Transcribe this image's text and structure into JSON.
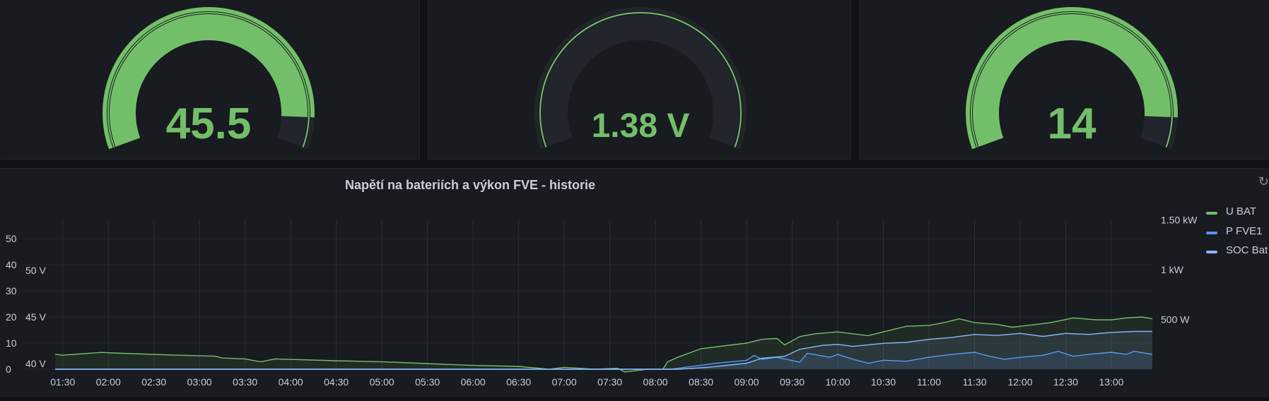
{
  "gauges": [
    {
      "value_text": "45.5",
      "fill_fraction": 0.92,
      "color": "#73bf69",
      "track": "#22252b"
    },
    {
      "value_text": "1.38 V",
      "fill_fraction": 0.0,
      "color": "#73bf69",
      "track": "#22252b"
    },
    {
      "value_text": "14",
      "fill_fraction": 0.92,
      "color": "#73bf69",
      "track": "#22252b"
    }
  ],
  "history": {
    "title": "Napětí na bateriích a výkon FVE - historie",
    "refresh_icon": "↻"
  },
  "legend": [
    {
      "label": "U BAT",
      "color": "#73bf69"
    },
    {
      "label": "P FVE1",
      "color": "#5794f2"
    },
    {
      "label": "SOC Bat",
      "color": "#8ab8ff"
    }
  ],
  "chart_data": {
    "type": "line",
    "title": "Napětí na bateriích a výkon FVE - historie",
    "x_ticks": [
      "01:30",
      "02:00",
      "02:30",
      "03:00",
      "03:30",
      "04:00",
      "04:30",
      "05:00",
      "05:30",
      "06:00",
      "06:30",
      "07:00",
      "07:30",
      "08:00",
      "08:30",
      "09:00",
      "09:30",
      "10:00",
      "10:30",
      "11:00",
      "11:30",
      "12:00",
      "12:30",
      "13:00"
    ],
    "x_range": [
      "01:25",
      "13:27"
    ],
    "y_axes": {
      "left_outer": {
        "ticks": [
          "0",
          "10",
          "20",
          "30",
          "40",
          "50"
        ],
        "range": [
          0,
          50
        ]
      },
      "left_inner": {
        "ticks": [
          "40 V",
          "45 V",
          "50 V"
        ],
        "unit": "V"
      },
      "right": {
        "ticks": [
          "500 W",
          "1 kW",
          "1.50 kW"
        ],
        "unit": "W"
      }
    },
    "grid": true,
    "legend_position": "right",
    "series": [
      {
        "name": "U BAT",
        "axis": "left_inner",
        "unit": "V",
        "color": "#73bf69",
        "points": [
          [
            "01:25",
            41.0
          ],
          [
            "01:30",
            40.9
          ],
          [
            "01:55",
            41.2
          ],
          [
            "02:10",
            41.1
          ],
          [
            "02:45",
            40.9
          ],
          [
            "03:10",
            40.8
          ],
          [
            "03:15",
            40.6
          ],
          [
            "03:30",
            40.5
          ],
          [
            "03:40",
            40.2
          ],
          [
            "03:50",
            40.5
          ],
          [
            "04:30",
            40.3
          ],
          [
            "05:00",
            40.2
          ],
          [
            "05:30",
            40.0
          ],
          [
            "06:00",
            39.8
          ],
          [
            "06:30",
            39.7
          ],
          [
            "06:50",
            39.4
          ],
          [
            "07:00",
            39.6
          ],
          [
            "07:20",
            39.4
          ],
          [
            "07:35",
            39.5
          ],
          [
            "07:40",
            39.1
          ],
          [
            "07:55",
            39.4
          ],
          [
            "08:05",
            39.4
          ],
          [
            "08:08",
            40.2
          ],
          [
            "08:15",
            40.7
          ],
          [
            "08:30",
            41.6
          ],
          [
            "08:45",
            41.9
          ],
          [
            "09:00",
            42.2
          ],
          [
            "09:10",
            42.6
          ],
          [
            "09:20",
            42.7
          ],
          [
            "09:25",
            42.0
          ],
          [
            "09:35",
            42.9
          ],
          [
            "09:45",
            43.2
          ],
          [
            "10:00",
            43.4
          ],
          [
            "10:10",
            43.2
          ],
          [
            "10:20",
            43.0
          ],
          [
            "10:30",
            43.4
          ],
          [
            "10:45",
            44.0
          ],
          [
            "11:00",
            44.1
          ],
          [
            "11:10",
            44.4
          ],
          [
            "11:20",
            44.8
          ],
          [
            "11:30",
            44.4
          ],
          [
            "11:45",
            44.2
          ],
          [
            "11:55",
            43.9
          ],
          [
            "12:05",
            44.1
          ],
          [
            "12:20",
            44.4
          ],
          [
            "12:35",
            44.9
          ],
          [
            "12:50",
            44.7
          ],
          [
            "13:00",
            44.7
          ],
          [
            "13:10",
            44.9
          ],
          [
            "13:20",
            45.0
          ],
          [
            "13:27",
            44.8
          ]
        ]
      },
      {
        "name": "P FVE1",
        "axis": "right",
        "unit": "W",
        "color": "#5794f2",
        "points": [
          [
            "01:25",
            0
          ],
          [
            "08:10",
            0
          ],
          [
            "08:20",
            20
          ],
          [
            "08:40",
            60
          ],
          [
            "09:00",
            90
          ],
          [
            "09:05",
            140
          ],
          [
            "09:10",
            100
          ],
          [
            "09:20",
            120
          ],
          [
            "09:35",
            70
          ],
          [
            "09:40",
            160
          ],
          [
            "09:55",
            120
          ],
          [
            "10:00",
            150
          ],
          [
            "10:10",
            100
          ],
          [
            "10:20",
            60
          ],
          [
            "10:30",
            90
          ],
          [
            "10:45",
            80
          ],
          [
            "11:00",
            120
          ],
          [
            "11:15",
            150
          ],
          [
            "11:30",
            170
          ],
          [
            "11:40",
            130
          ],
          [
            "11:50",
            100
          ],
          [
            "12:00",
            120
          ],
          [
            "12:15",
            140
          ],
          [
            "12:25",
            180
          ],
          [
            "12:35",
            130
          ],
          [
            "12:45",
            150
          ],
          [
            "13:00",
            170
          ],
          [
            "13:10",
            150
          ],
          [
            "13:15",
            180
          ],
          [
            "13:27",
            150
          ]
        ]
      },
      {
        "name": "SOC Bat",
        "axis": "right",
        "unit": "W",
        "color": "#8ab8ff",
        "points": [
          [
            "01:25",
            0
          ],
          [
            "08:15",
            0
          ],
          [
            "08:35",
            20
          ],
          [
            "09:00",
            60
          ],
          [
            "09:10",
            110
          ],
          [
            "09:25",
            130
          ],
          [
            "09:35",
            200
          ],
          [
            "09:50",
            240
          ],
          [
            "10:00",
            250
          ],
          [
            "10:10",
            230
          ],
          [
            "10:30",
            260
          ],
          [
            "10:45",
            270
          ],
          [
            "11:00",
            300
          ],
          [
            "11:15",
            320
          ],
          [
            "11:30",
            350
          ],
          [
            "11:45",
            340
          ],
          [
            "12:00",
            360
          ],
          [
            "12:15",
            330
          ],
          [
            "12:30",
            360
          ],
          [
            "12:45",
            350
          ],
          [
            "13:00",
            370
          ],
          [
            "13:15",
            380
          ],
          [
            "13:27",
            380
          ]
        ]
      }
    ]
  }
}
